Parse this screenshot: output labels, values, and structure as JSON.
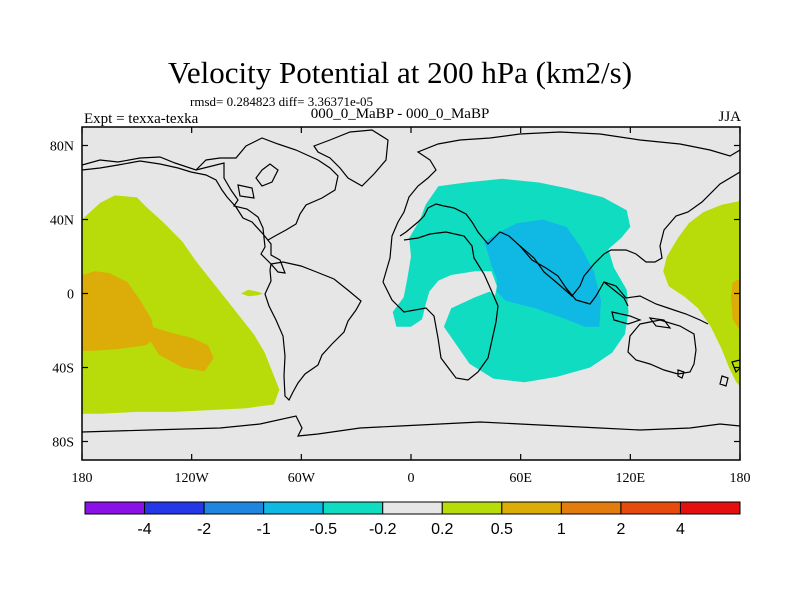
{
  "header": {
    "title": "Velocity Potential at 200 hPa (km2/s)",
    "stats": "rmsd= 0.284823  diff= 3.36371e-05",
    "experiment": "Expt = texxa-texka",
    "difference": "000_0_MaBP - 000_0_MaBP",
    "season": "JJA"
  },
  "chart_data": {
    "type": "heatmap",
    "title": "Velocity Potential at 200 hPa (km2/s)",
    "xlabel": "",
    "ylabel": "",
    "xlim": [
      -180,
      180
    ],
    "ylim": [
      -90,
      90
    ],
    "x_ticks": [
      {
        "value": -180,
        "label": "180"
      },
      {
        "value": -120,
        "label": "120W"
      },
      {
        "value": -60,
        "label": "60W"
      },
      {
        "value": 0,
        "label": "0"
      },
      {
        "value": 60,
        "label": "60E"
      },
      {
        "value": 120,
        "label": "120E"
      },
      {
        "value": 180,
        "label": "180"
      }
    ],
    "y_ticks": [
      {
        "value": 80,
        "label": "80N"
      },
      {
        "value": 40,
        "label": "40N"
      },
      {
        "value": 0,
        "label": "0"
      },
      {
        "value": -40,
        "label": "40S"
      },
      {
        "value": -80,
        "label": "80S"
      }
    ],
    "background_color": "#e6e6e6",
    "colorbar": {
      "levels": [
        "-4",
        "-2",
        "-1",
        "-0.5",
        "-0.2",
        "0.2",
        "0.5",
        "1",
        "2",
        "4"
      ],
      "colors": [
        "#8a12e8",
        "#2438e8",
        "#1f86e0",
        "#10b9e4",
        "#10dcc2",
        "#e6e6e6",
        "#b8dc0a",
        "#dcac08",
        "#e27c0c",
        "#e64a0c",
        "#e41010"
      ]
    },
    "regions": [
      {
        "name": "pacific-positive-outer",
        "level": "0.2 to 0.5",
        "color": "#b8dc0a",
        "polygon": [
          [
            -180,
            40
          ],
          [
            -170,
            49
          ],
          [
            -162,
            53
          ],
          [
            -150,
            52
          ],
          [
            -145,
            47
          ],
          [
            -135,
            38
          ],
          [
            -125,
            28
          ],
          [
            -118,
            18
          ],
          [
            -110,
            8
          ],
          [
            -102,
            -2
          ],
          [
            -94,
            -12
          ],
          [
            -86,
            -22
          ],
          [
            -80,
            -32
          ],
          [
            -76,
            -42
          ],
          [
            -72,
            -52
          ],
          [
            -75,
            -60
          ],
          [
            -90,
            -62
          ],
          [
            -110,
            -63
          ],
          [
            -130,
            -64
          ],
          [
            -150,
            -64
          ],
          [
            -170,
            -65
          ],
          [
            -180,
            -65
          ]
        ]
      },
      {
        "name": "pacific-positive-core",
        "level": "0.5 to 1",
        "color": "#dcac08",
        "polygon": [
          [
            -180,
            10
          ],
          [
            -173,
            12
          ],
          [
            -165,
            11
          ],
          [
            -155,
            6
          ],
          [
            -148,
            -4
          ],
          [
            -142,
            -14
          ],
          [
            -140,
            -24
          ],
          [
            -145,
            -28
          ],
          [
            -160,
            -30
          ],
          [
            -175,
            -31
          ],
          [
            -180,
            -31
          ]
        ]
      },
      {
        "name": "south-pacific-positive-core",
        "level": "0.5 to 1",
        "color": "#dcac08",
        "polygon": [
          [
            -142,
            -18
          ],
          [
            -132,
            -21
          ],
          [
            -120,
            -24
          ],
          [
            -111,
            -28
          ],
          [
            -108,
            -35
          ],
          [
            -113,
            -42
          ],
          [
            -125,
            -40
          ],
          [
            -138,
            -33
          ],
          [
            -143,
            -25
          ]
        ]
      },
      {
        "name": "west-pacific-positive",
        "level": "0.2 to 0.5",
        "color": "#b8dc0a",
        "polygon": [
          [
            180,
            50
          ],
          [
            170,
            48
          ],
          [
            160,
            44
          ],
          [
            152,
            38
          ],
          [
            146,
            30
          ],
          [
            140,
            20
          ],
          [
            138,
            12
          ],
          [
            141,
            4
          ],
          [
            150,
            -2
          ],
          [
            157,
            -8
          ],
          [
            164,
            -18
          ],
          [
            170,
            -30
          ],
          [
            174,
            -40
          ],
          [
            178,
            -48
          ],
          [
            180,
            -50
          ]
        ]
      },
      {
        "name": "west-pacific-positive-core",
        "level": "0.5 to 1",
        "color": "#dcac08",
        "polygon": [
          [
            180,
            8
          ],
          [
            176,
            6
          ],
          [
            175,
            -2
          ],
          [
            176,
            -14
          ],
          [
            180,
            -20
          ]
        ]
      },
      {
        "name": "atlantic-positive-blob",
        "level": "0.2 to 0.5",
        "color": "#b8dc0a",
        "polygon": [
          [
            -93,
            0
          ],
          [
            -89,
            2
          ],
          [
            -84,
            1
          ],
          [
            -81,
            0
          ],
          [
            -84,
            -1
          ],
          [
            -89,
            -1.5
          ]
        ]
      },
      {
        "name": "eastern-hemisphere-negative",
        "level": "-0.5 to -0.2",
        "color": "#10dcc2",
        "polygon": [
          [
            15,
            58
          ],
          [
            30,
            60
          ],
          [
            50,
            62
          ],
          [
            70,
            60
          ],
          [
            85,
            57
          ],
          [
            105,
            52
          ],
          [
            118,
            45
          ],
          [
            120,
            36
          ],
          [
            115,
            30
          ],
          [
            108,
            24
          ],
          [
            111,
            14
          ],
          [
            118,
            2
          ],
          [
            119,
            -10
          ],
          [
            117,
            -22
          ],
          [
            110,
            -32
          ],
          [
            98,
            -40
          ],
          [
            80,
            -45
          ],
          [
            62,
            -48
          ],
          [
            45,
            -46
          ],
          [
            32,
            -38
          ],
          [
            25,
            -28
          ],
          [
            18,
            -18
          ],
          [
            22,
            -8
          ],
          [
            35,
            -2
          ],
          [
            43,
            1
          ],
          [
            46,
            -1
          ],
          [
            47,
            4
          ],
          [
            44,
            12
          ],
          [
            35,
            12
          ],
          [
            22,
            10
          ],
          [
            15,
            7
          ],
          [
            10,
            1
          ],
          [
            8,
            -6
          ],
          [
            6,
            -14
          ],
          [
            0,
            -18
          ],
          [
            -8,
            -18
          ],
          [
            -10,
            -10
          ],
          [
            -4,
            -2
          ],
          [
            -2,
            8
          ],
          [
            0,
            20
          ],
          [
            -1,
            30
          ],
          [
            5,
            40
          ],
          [
            8,
            48
          ]
        ]
      },
      {
        "name": "eastern-hemisphere-negative-core",
        "level": "-1 to -0.5",
        "color": "#10b9e4",
        "polygon": [
          [
            40,
            28
          ],
          [
            48,
            33
          ],
          [
            58,
            38
          ],
          [
            72,
            40
          ],
          [
            85,
            36
          ],
          [
            93,
            25
          ],
          [
            100,
            12
          ],
          [
            104,
            -4
          ],
          [
            103,
            -18
          ],
          [
            95,
            -18
          ],
          [
            85,
            -14
          ],
          [
            68,
            -8
          ],
          [
            52,
            -4
          ],
          [
            47,
            1
          ],
          [
            47,
            8
          ],
          [
            44,
            15
          ],
          [
            42,
            22
          ]
        ]
      }
    ]
  }
}
